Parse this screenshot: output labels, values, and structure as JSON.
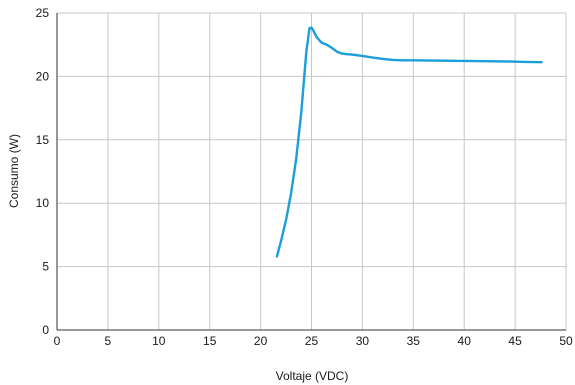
{
  "chart_data": {
    "type": "line",
    "xlabel": "Voltaje (VDC)",
    "ylabel": "Consumo (W)",
    "xlim": [
      0,
      50
    ],
    "ylim": [
      0,
      25
    ],
    "x_ticks": [
      0,
      5,
      10,
      15,
      20,
      25,
      30,
      35,
      40,
      45,
      50
    ],
    "y_ticks": [
      0,
      5,
      10,
      15,
      20,
      25
    ],
    "x_tick_labels": [
      "0",
      "5",
      "10",
      "15",
      "20",
      "25",
      "30",
      "35",
      "40",
      "45",
      "50"
    ],
    "y_tick_labels": [
      "0",
      "5",
      "10",
      "15",
      "20",
      "25"
    ],
    "grid": true,
    "series": [
      {
        "color": "#1a9fd8",
        "x": [
          21.6,
          22.0,
          22.5,
          23.0,
          23.5,
          24.0,
          24.5,
          24.8,
          25.0,
          25.2,
          25.5,
          26.0,
          26.5,
          27.0,
          27.5,
          28.0,
          28.5,
          29.0,
          30.0,
          31.0,
          32.0,
          33.0,
          34.0,
          35.0,
          36.0,
          38.0,
          40.0,
          42.0,
          44.0,
          46.0,
          47.6
        ],
        "y": [
          5.8,
          7.0,
          8.7,
          10.8,
          13.5,
          17.2,
          22.0,
          23.8,
          23.85,
          23.6,
          23.1,
          22.65,
          22.5,
          22.25,
          21.95,
          21.8,
          21.75,
          21.72,
          21.62,
          21.48,
          21.38,
          21.3,
          21.27,
          21.27,
          21.26,
          21.24,
          21.22,
          21.2,
          21.18,
          21.14,
          21.12
        ]
      }
    ]
  }
}
